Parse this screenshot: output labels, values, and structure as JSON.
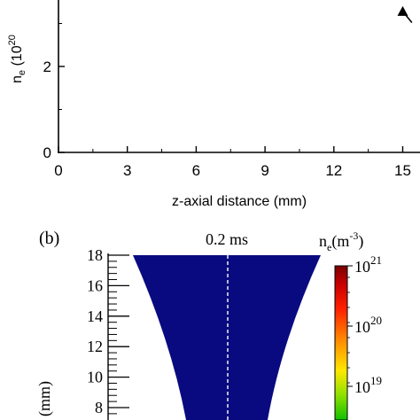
{
  "panel_a": {
    "ylabel_main": "n",
    "ylabel_sub": "e",
    "ylabel_paren": "(10",
    "ylabel_sup": "20",
    "xlabel": "z-axial distance (mm)",
    "chart_data": {
      "type": "line",
      "xlabel": "z-axial distance (mm)",
      "x_ticks": [
        "0",
        "3",
        "6",
        "9",
        "12",
        "15"
      ],
      "y_ticks": [
        "0",
        "2"
      ],
      "xlim": [
        0,
        16.5
      ],
      "ylim": [
        0,
        4.05
      ],
      "series": [
        {
          "marker": "triangle",
          "x": [
            15,
            15.4
          ],
          "y": [
            3.28,
            3.02
          ]
        }
      ]
    }
  },
  "panel_b": {
    "panel_label": "(b)",
    "time_label": "0.2 ms",
    "fill_color": "#0a0a80",
    "ylabel": "(mm)",
    "y_ticks": [
      "18",
      "16",
      "14",
      "12",
      "10",
      "8"
    ],
    "colorbar": {
      "title_main": "n",
      "title_sub": "e",
      "title_unit": "(m",
      "title_sup": "-3",
      "title_close": ")",
      "ticks": [
        {
          "base": "10",
          "exp": "21"
        },
        {
          "base": "10",
          "exp": "20"
        },
        {
          "base": "10",
          "exp": "19"
        }
      ]
    }
  }
}
